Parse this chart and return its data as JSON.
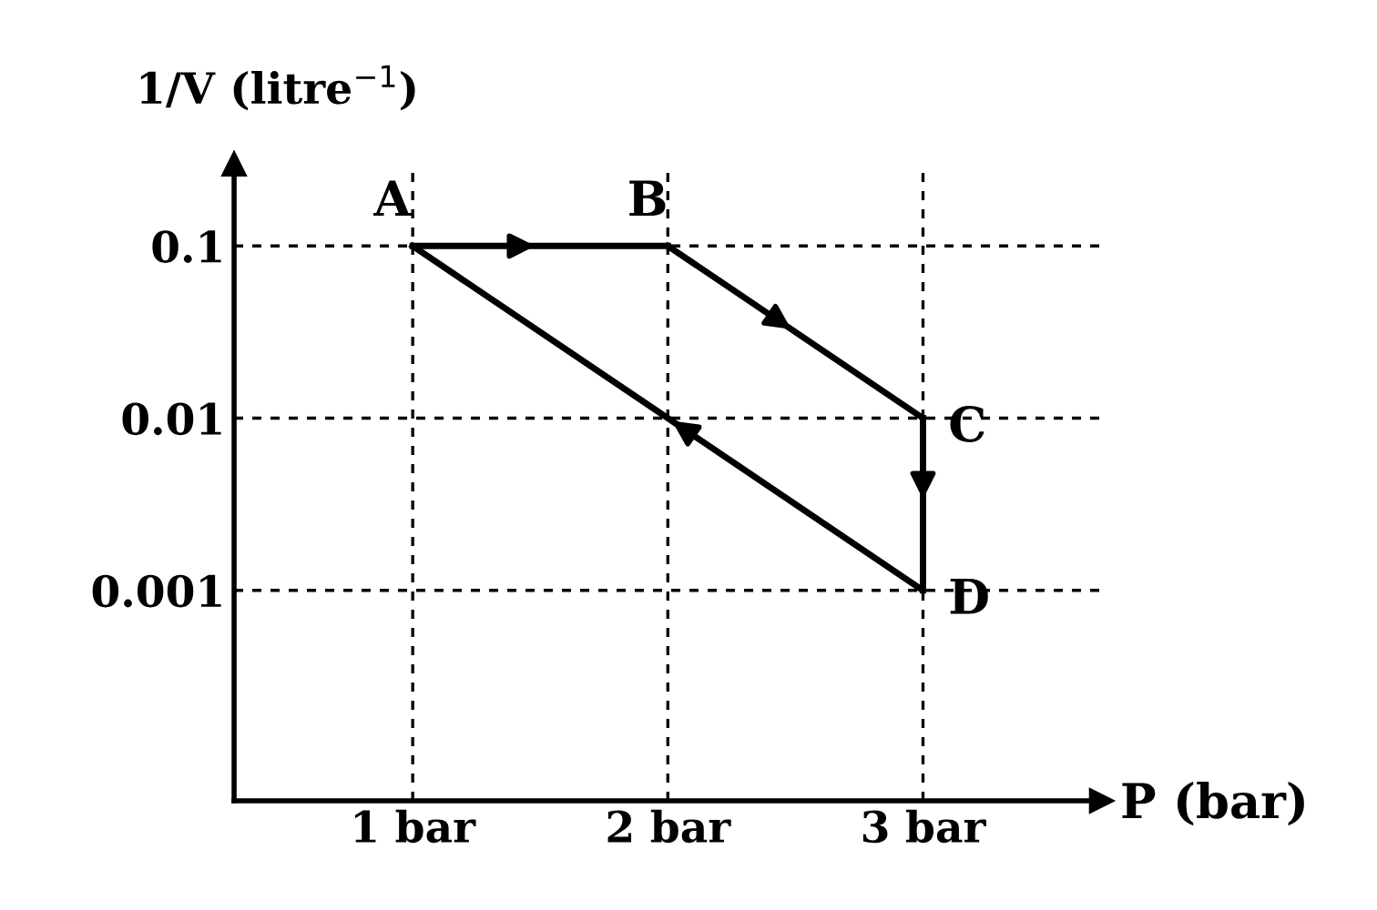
{
  "chart_data": {
    "type": "line",
    "xlabel": "P (bar)",
    "ylabel": "1/V (litre$^{−1}$)",
    "series": [
      {
        "color": "#000000",
        "x": [
          1,
          2
        ],
        "values": [
          0.1,
          0.1
        ]
      },
      {
        "color": "#000000",
        "x": [
          2,
          3
        ],
        "values": [
          0.1,
          0.01
        ]
      },
      {
        "color": "#000000",
        "x": [
          3,
          3
        ],
        "values": [
          0.01,
          0.001
        ]
      },
      {
        "color": "#000000",
        "x": [
          3,
          1
        ],
        "values": [
          0.001,
          0.1
        ]
      }
    ],
    "log": "y",
    "xlim": [
      0.3,
      3.7
    ],
    "xticks": [
      {
        "value": 1,
        "label": "1 bar"
      },
      {
        "value": 2,
        "label": "2 bar"
      },
      {
        "value": 3,
        "label": "3 bar"
      }
    ],
    "ylim": [
      6e-05,
      0.3
    ],
    "yticks": [
      0.1,
      0.01,
      0.001
    ],
    "grid": true,
    "marker": "none",
    "line_style": "solid",
    "annotations": [
      {
        "text": "A",
        "x": 1,
        "y": 0.1
      },
      {
        "text": "B",
        "x": 2,
        "y": 0.1
      },
      {
        "text": "C",
        "x": 3,
        "y": 0.01
      },
      {
        "text": "D",
        "x": 3,
        "y": 0.001
      }
    ]
  }
}
